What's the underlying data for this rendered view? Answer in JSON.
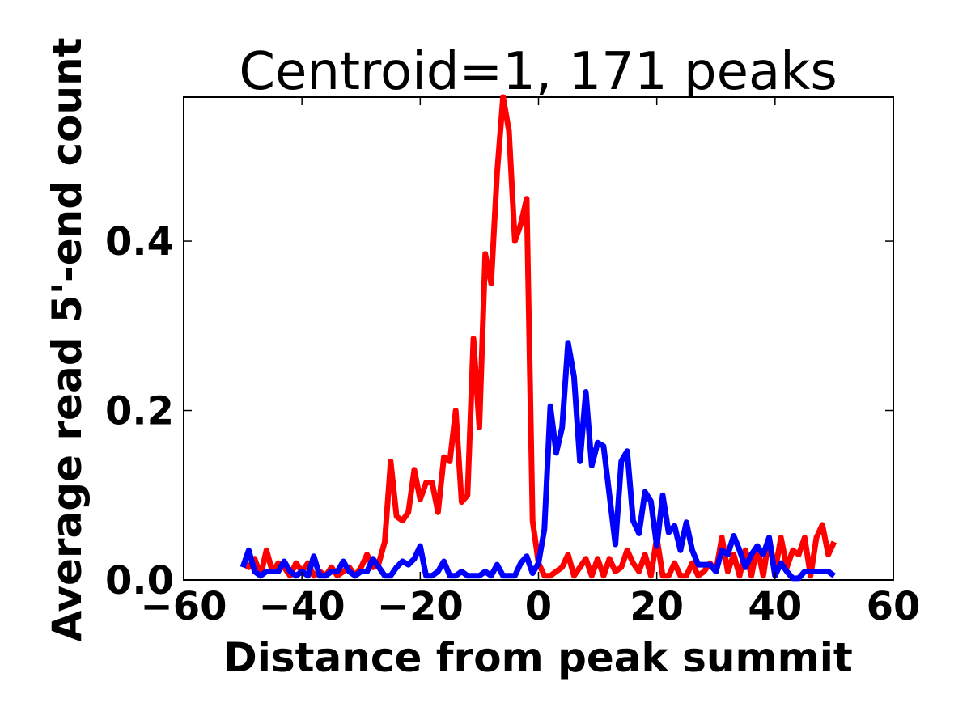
{
  "chart_data": {
    "type": "line",
    "title": "Centroid=1, 171 peaks",
    "xlabel": "Distance from peak summit",
    "ylabel": "Average read 5'-end count",
    "xlim": [
      -60,
      60
    ],
    "ylim": [
      0,
      0.57
    ],
    "xticks": [
      -60,
      -40,
      -20,
      0,
      20,
      40,
      60
    ],
    "xtick_labels": [
      "−60",
      "−40",
      "−20",
      "0",
      "20",
      "40",
      "60"
    ],
    "yticks": [
      0,
      0.2,
      0.4
    ],
    "ytick_labels": [
      "0.0",
      "0.2",
      "0.4"
    ],
    "grid": false,
    "x": [
      -50,
      -49,
      -48,
      -47,
      -46,
      -45,
      -44,
      -43,
      -42,
      -41,
      -40,
      -39,
      -38,
      -37,
      -36,
      -35,
      -34,
      -33,
      -32,
      -31,
      -30,
      -29,
      -28,
      -27,
      -26,
      -25,
      -24,
      -23,
      -22,
      -21,
      -20,
      -19,
      -18,
      -17,
      -16,
      -15,
      -14,
      -13,
      -12,
      -11,
      -10,
      -9,
      -8,
      -7,
      -6,
      -5,
      -4,
      -3,
      -2,
      -1,
      0,
      1,
      2,
      3,
      4,
      5,
      6,
      7,
      8,
      9,
      10,
      11,
      12,
      13,
      14,
      15,
      16,
      17,
      18,
      19,
      20,
      21,
      22,
      23,
      24,
      25,
      26,
      27,
      28,
      29,
      30,
      31,
      32,
      33,
      34,
      35,
      36,
      37,
      38,
      39,
      40,
      41,
      42,
      43,
      44,
      45,
      46,
      47,
      48,
      49,
      50
    ],
    "series": [
      {
        "color": "#ff0000",
        "values": [
          0.02,
          0.015,
          0.025,
          0.005,
          0.035,
          0.01,
          0.02,
          0.015,
          0.005,
          0.02,
          0.01,
          0.02,
          0.005,
          0.01,
          0.005,
          0.015,
          0.005,
          0.01,
          0.015,
          0.005,
          0.015,
          0.03,
          0.015,
          0.02,
          0.045,
          0.14,
          0.075,
          0.07,
          0.08,
          0.13,
          0.095,
          0.115,
          0.115,
          0.08,
          0.145,
          0.14,
          0.2,
          0.092,
          0.1,
          0.285,
          0.18,
          0.385,
          0.35,
          0.48,
          0.57,
          0.53,
          0.4,
          0.42,
          0.45,
          0.07,
          0.02,
          0.005,
          0.005,
          0.01,
          0.015,
          0.03,
          0.005,
          0.015,
          0.025,
          0.005,
          0.025,
          0.005,
          0.025,
          0.01,
          0.015,
          0.035,
          0.02,
          0.01,
          0.03,
          0.005,
          0.05,
          0.005,
          0.005,
          0.02,
          0.005,
          0.005,
          0.02,
          0.005,
          0.01,
          0.02,
          0.01,
          0.05,
          0.01,
          0.03,
          0.005,
          0.035,
          0.005,
          0.04,
          0.005,
          0.05,
          0.01,
          0.05,
          0.015,
          0.035,
          0.03,
          0.05,
          0.005,
          0.05,
          0.065,
          0.03,
          0.045
        ]
      },
      {
        "color": "#0000ff",
        "values": [
          0.015,
          0.035,
          0.01,
          0.005,
          0.01,
          0.01,
          0.01,
          0.022,
          0.01,
          0.005,
          0.01,
          0.005,
          0.028,
          0.005,
          0.005,
          0.01,
          0.01,
          0.022,
          0.01,
          0.005,
          0.01,
          0.01,
          0.025,
          0.015,
          0.005,
          0.005,
          0.015,
          0.022,
          0.018,
          0.025,
          0.04,
          0.005,
          0.005,
          0.01,
          0.022,
          0.005,
          0.005,
          0.01,
          0.005,
          0.005,
          0.005,
          0.01,
          0.005,
          0.018,
          0.005,
          0.005,
          0.005,
          0.02,
          0.028,
          0.008,
          0.02,
          0.06,
          0.205,
          0.15,
          0.18,
          0.28,
          0.24,
          0.14,
          0.222,
          0.135,
          0.162,
          0.158,
          0.1,
          0.042,
          0.14,
          0.152,
          0.07,
          0.055,
          0.104,
          0.093,
          0.04,
          0.1,
          0.056,
          0.064,
          0.035,
          0.068,
          0.035,
          0.018,
          0.018,
          0.018,
          0.01,
          0.035,
          0.03,
          0.052,
          0.035,
          0.015,
          0.03,
          0.04,
          0.03,
          0.05,
          0.005,
          0.02,
          0.01,
          0.002,
          0.002,
          0.01,
          0.01,
          0.01,
          0.01,
          0.01,
          0.005
        ]
      }
    ]
  }
}
